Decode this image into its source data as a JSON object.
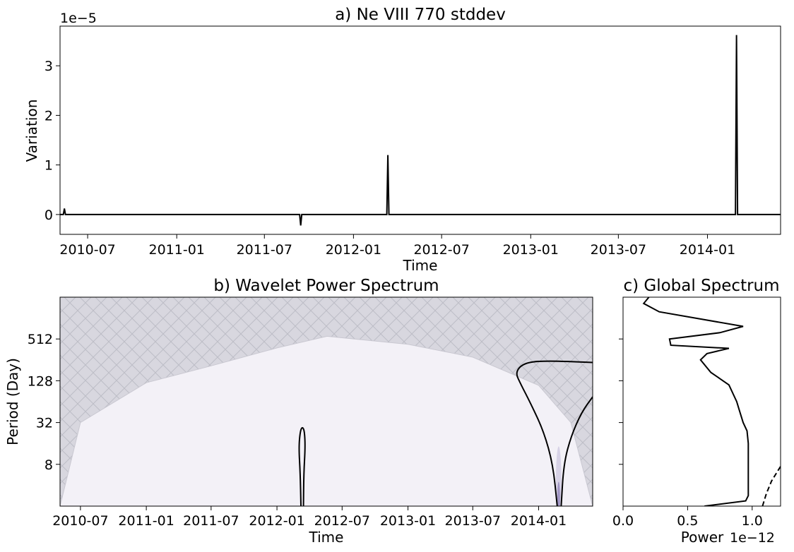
{
  "chart_data": [
    {
      "id": "a",
      "type": "line",
      "title": "a) Ne VIII 770 stddev",
      "xlabel": "Time",
      "ylabel": "Variation",
      "offset_text": "1e−5",
      "x_ticks": [
        "2010-07",
        "2011-01",
        "2011-07",
        "2012-01",
        "2012-07",
        "2013-01",
        "2013-07",
        "2014-01"
      ],
      "y_ticks": [
        "0",
        "1",
        "2",
        "3"
      ],
      "xlim": [
        "2010-05-05",
        "2014-06-01"
      ],
      "ylim": [
        -0.4,
        3.8
      ],
      "series": [
        {
          "line_color": "#000000",
          "spikes": [
            {
              "date": "2010-05-14",
              "value": 0.12
            },
            {
              "date": "2011-09-14",
              "value": -0.22
            },
            {
              "date": "2012-03-12",
              "value": 1.2
            },
            {
              "date": "2014-03-02",
              "value": 3.62
            }
          ],
          "baseline": 0
        }
      ]
    },
    {
      "id": "b",
      "type": "heatmap",
      "title": "b) Wavelet Power Spectrum",
      "xlabel": "Time",
      "ylabel": "Period (Day)",
      "x_ticks": [
        "2010-07",
        "2011-01",
        "2011-07",
        "2012-01",
        "2012-07",
        "2013-01",
        "2013-07",
        "2014-01"
      ],
      "y_ticks": [
        "8",
        "32",
        "128",
        "512"
      ],
      "xlim": [
        "2010-05-05",
        "2014-06-01"
      ],
      "ylim_period_log2": [
        1,
        11
      ],
      "colors": {
        "background": "#f3f1f7",
        "coi_hatch": "#d8d7df",
        "hatch_line": "#bdbdc6",
        "contour": "#000000",
        "hotspot": "#5b4a9a"
      },
      "coi": [
        {
          "date": "2010-05-05",
          "period": 2
        },
        {
          "date": "2010-07-01",
          "period": 32
        },
        {
          "date": "2011-01-01",
          "period": 120
        },
        {
          "date": "2011-07-01",
          "period": 210
        },
        {
          "date": "2012-01-01",
          "period": 380
        },
        {
          "date": "2012-05-20",
          "period": 560
        },
        {
          "date": "2013-01-01",
          "period": 430
        },
        {
          "date": "2013-07-01",
          "period": 280
        },
        {
          "date": "2014-01-01",
          "period": 110
        },
        {
          "date": "2014-04-01",
          "period": 32
        },
        {
          "date": "2014-06-01",
          "period": 2
        }
      ],
      "contours": [
        {
          "points": [
            {
              "date": "2012-03-08",
              "period": 2
            },
            {
              "date": "2012-03-06",
              "period": 6
            },
            {
              "date": "2012-03-02",
              "period": 14
            },
            {
              "date": "2012-03-06",
              "period": 24
            },
            {
              "date": "2012-03-12",
              "period": 28
            },
            {
              "date": "2012-03-18",
              "period": 24
            },
            {
              "date": "2012-03-20",
              "period": 14
            },
            {
              "date": "2012-03-16",
              "period": 6
            },
            {
              "date": "2012-03-15",
              "period": 2
            }
          ]
        },
        {
          "points": [
            {
              "date": "2014-02-22",
              "period": 2
            },
            {
              "date": "2014-02-10",
              "period": 8
            },
            {
              "date": "2014-01-15",
              "period": 24
            },
            {
              "date": "2013-12-10",
              "period": 60
            },
            {
              "date": "2013-11-10",
              "period": 120
            },
            {
              "date": "2013-10-28",
              "period": 170
            },
            {
              "date": "2013-11-20",
              "period": 230
            },
            {
              "date": "2014-01-15",
              "period": 250
            },
            {
              "date": "2014-06-01",
              "period": 235
            }
          ]
        },
        {
          "points": [
            {
              "date": "2014-03-05",
              "period": 2
            },
            {
              "date": "2014-03-12",
              "period": 8
            },
            {
              "date": "2014-04-01",
              "period": 20
            },
            {
              "date": "2014-05-01",
              "period": 45
            },
            {
              "date": "2014-06-01",
              "period": 75
            }
          ]
        }
      ]
    },
    {
      "id": "c",
      "type": "line",
      "title": "c) Global Spectrum",
      "xlabel": "Power",
      "offset_text": "1e−12",
      "x_ticks": [
        "0.0",
        "0.5",
        "1.0"
      ],
      "xlim": [
        0,
        1.22
      ],
      "ylim_period_log2": [
        1,
        11
      ],
      "series": [
        {
          "line_color": "#000000",
          "style": "solid",
          "points": [
            {
              "power": 0.63,
              "log2p": 1.0
            },
            {
              "power": 0.95,
              "log2p": 1.25
            },
            {
              "power": 0.97,
              "log2p": 1.5
            },
            {
              "power": 0.97,
              "log2p": 4.0
            },
            {
              "power": 0.96,
              "log2p": 4.6
            },
            {
              "power": 0.93,
              "log2p": 5.0
            },
            {
              "power": 0.9,
              "log2p": 5.6
            },
            {
              "power": 0.88,
              "log2p": 6.0
            },
            {
              "power": 0.82,
              "log2p": 6.8
            },
            {
              "power": 0.75,
              "log2p": 7.1
            },
            {
              "power": 0.68,
              "log2p": 7.4
            },
            {
              "power": 0.6,
              "log2p": 8.0
            },
            {
              "power": 0.65,
              "log2p": 8.3
            },
            {
              "power": 0.82,
              "log2p": 8.55
            },
            {
              "power": 0.37,
              "log2p": 8.7
            },
            {
              "power": 0.36,
              "log2p": 9.0
            },
            {
              "power": 0.75,
              "log2p": 9.3
            },
            {
              "power": 0.93,
              "log2p": 9.6
            },
            {
              "power": 0.28,
              "log2p": 10.3
            },
            {
              "power": 0.16,
              "log2p": 10.7
            },
            {
              "power": 0.2,
              "log2p": 11.0
            }
          ]
        },
        {
          "line_color": "#000000",
          "style": "dashed",
          "points": [
            {
              "power": 1.08,
              "log2p": 1.0
            },
            {
              "power": 1.11,
              "log2p": 1.6
            },
            {
              "power": 1.15,
              "log2p": 2.2
            },
            {
              "power": 1.19,
              "log2p": 2.6
            },
            {
              "power": 1.22,
              "log2p": 2.9
            }
          ]
        }
      ]
    }
  ]
}
